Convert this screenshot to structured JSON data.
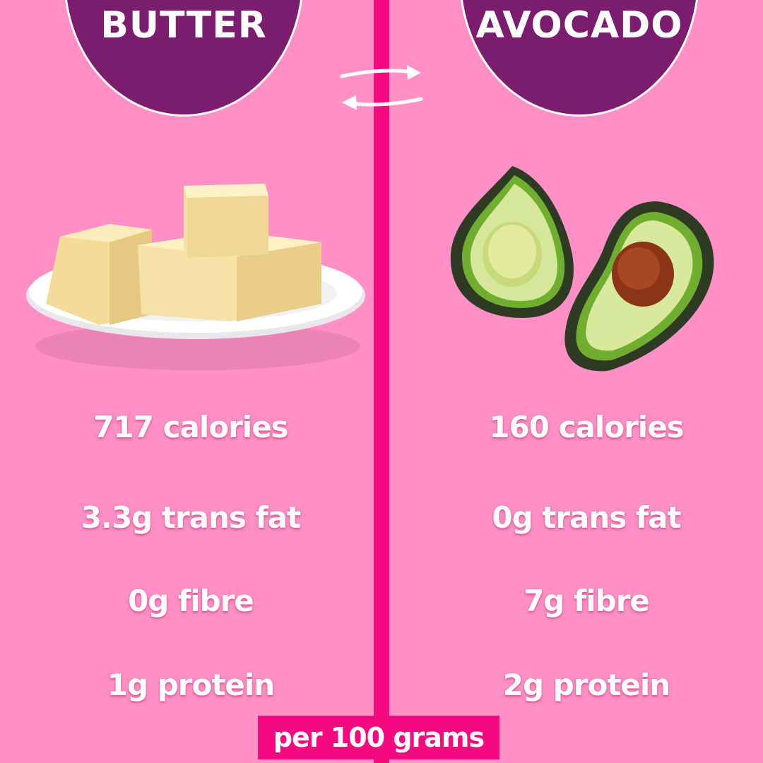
{
  "left": {
    "title": "BUTTER",
    "stats": [
      "717 calories",
      "3.3g trans fat",
      "0g fibre",
      "1g protein"
    ]
  },
  "right": {
    "title": "AVOCADO",
    "stats": [
      "160 calories",
      "0g trans fat",
      "7g fibre",
      "2g protein"
    ]
  },
  "footer": "per 100 grams",
  "icons": {
    "swap": "swap-arrows-icon"
  },
  "colors": {
    "background": "#ff8fc4",
    "accent": "#f5097f",
    "badge": "#7c1c6e",
    "text": "#ffffff"
  }
}
